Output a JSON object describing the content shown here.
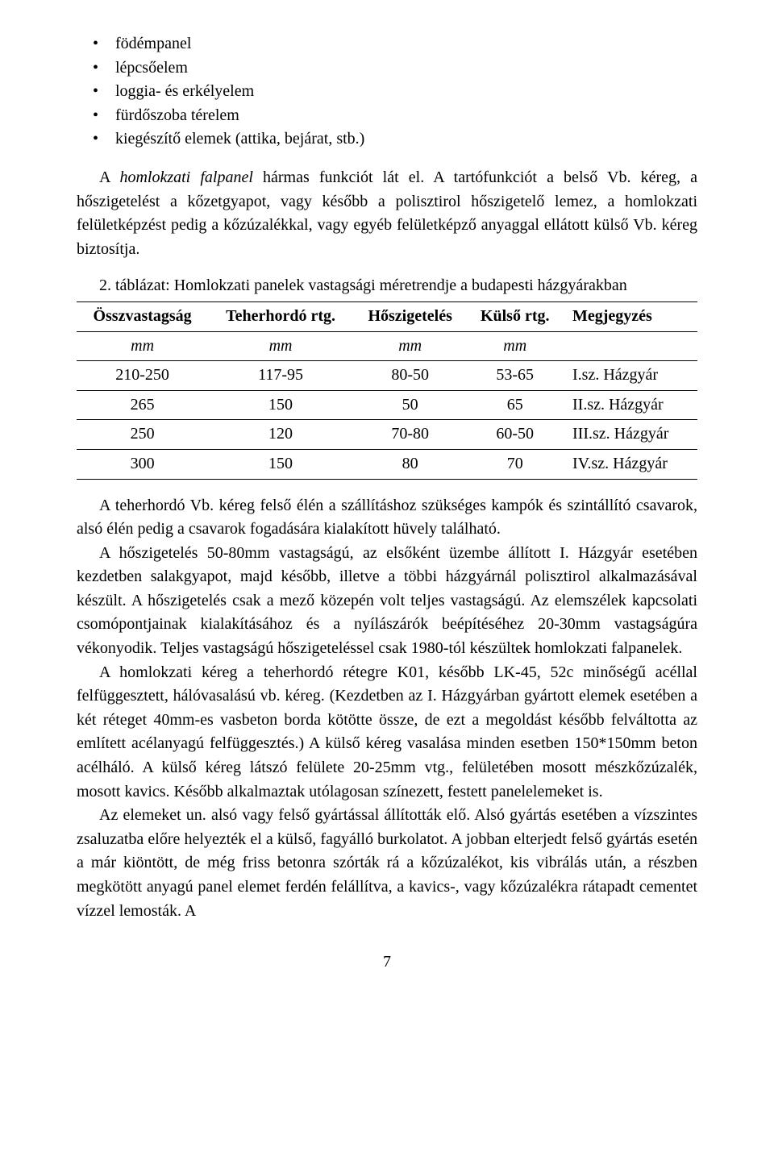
{
  "bullets": [
    "födémpanel",
    "lépcsőelem",
    "loggia- és erkélyelem",
    "fürdőszoba térelem",
    "kiegészítő elemek (attika, bejárat, stb.)"
  ],
  "para1_html": "A <i>homlokzati falpanel</i> hármas funkciót lát el. A tartófunkciót a belső Vb. kéreg, a hőszigetelést a kőzetgyapot, vagy később a polisztirol hőszigetelő lemez, a homlokzati felületképzést pedig a kőzúzalékkal, vagy egyéb felületképző anyaggal ellátott külső Vb. kéreg biztosítja.",
  "table": {
    "caption": "2. táblázat: Homlokzati panelek vastagsági méretrendje a budapesti házgyárakban",
    "headers": [
      "Összvastagság",
      "Teherhordó rtg.",
      "Hőszigetelés",
      "Külső rtg.",
      "Megjegyzés"
    ],
    "units": [
      "mm",
      "mm",
      "mm",
      "mm",
      ""
    ],
    "rows": [
      [
        "210-250",
        "117-95",
        "80-50",
        "53-65",
        "I.sz. Házgyár"
      ],
      [
        "265",
        "150",
        "50",
        "65",
        "II.sz. Házgyár"
      ],
      [
        "250",
        "120",
        "70-80",
        "60-50",
        "III.sz. Házgyár"
      ],
      [
        "300",
        "150",
        "80",
        "70",
        "IV.sz. Házgyár"
      ]
    ]
  },
  "para2": "A teherhordó Vb. kéreg felső élén a szállításhoz szükséges kampók és szintállító csavarok, alsó élén pedig a csavarok fogadására kialakított hüvely található.",
  "para3": "A hőszigetelés 50-80mm vastagságú, az elsőként üzembe állított I. Házgyár esetében kezdetben salakgyapot, majd később, illetve a többi házgyárnál polisztirol alkalmazásával készült. A hőszigetelés csak a mező közepén volt teljes vastagságú. Az elemszélek kapcsolati csomópontjainak kialakításához és a nyílászárók beépítéséhez 20-30mm vastagságúra vékonyodik. Teljes vastagságú hőszigeteléssel csak 1980-tól készültek homlokzati falpanelek.",
  "para4": "A homlokzati kéreg a teherhordó rétegre K01, később LK-45, 52c minőségű acéllal felfüggesztett, hálóvasalású vb. kéreg. (Kezdetben az I. Házgyárban gyártott elemek esetében a két réteget 40mm-es vasbeton borda kötötte össze, de ezt a megoldást később felváltotta az említett acélanyagú felfüggesztés.) A külső kéreg vasalása minden esetben 150*150mm beton acélháló. A külső kéreg látszó felülete 20-25mm vtg., felületében mosott mészkőzúzalék, mosott kavics. Később alkalmaztak utólagosan színezett, festett panelelemeket is.",
  "para5": "Az elemeket un. alsó vagy felső gyártással állították elő. Alsó gyártás esetében a vízszintes zsaluzatba előre helyezték el a külső, fagyálló burkolatot. A jobban elterjedt felső gyártás esetén a már kiöntött, de még friss betonra szórták rá a kőzúzalékot, kis vibrálás után, a részben megkötött anyagú panel elemet ferdén felállítva, a kavics-, vagy kőzúzalékra rátapadt cementet vízzel lemosták. A",
  "page_number": "7"
}
